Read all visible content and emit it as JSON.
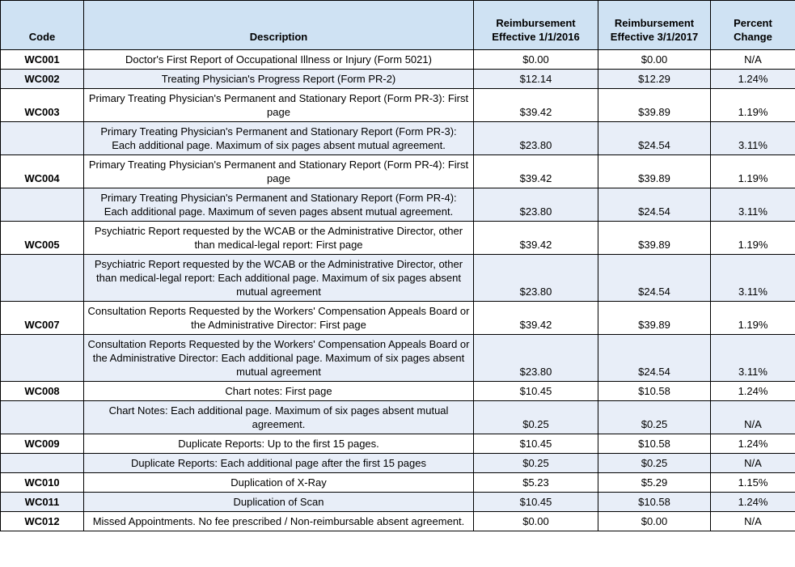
{
  "colors": {
    "header_bg": "#cfe2f3",
    "stripe_bg": "#e8eef8",
    "border": "#000000",
    "text": "#000000"
  },
  "table": {
    "columns": [
      {
        "key": "code",
        "label": "Code"
      },
      {
        "key": "description",
        "label": "Description"
      },
      {
        "key": "r2016",
        "label": "Reimbursement Effective 1/1/2016"
      },
      {
        "key": "r2017",
        "label": "Reimbursement Effective 3/1/2017"
      },
      {
        "key": "pct",
        "label": "Percent Change"
      }
    ],
    "rows": [
      {
        "code": "WC001",
        "description": "Doctor's First Report of Occupational Illness or Injury (Form 5021)",
        "r2016": "$0.00",
        "r2017": "$0.00",
        "pct": "N/A"
      },
      {
        "code": "WC002",
        "description": "Treating Physician's Progress Report (Form PR-2)",
        "r2016": "$12.14",
        "r2017": "$12.29",
        "pct": "1.24%"
      },
      {
        "code": "WC003",
        "description": "Primary Treating Physician's Permanent and Stationary Report (Form PR-3): First page",
        "r2016": "$39.42",
        "r2017": "$39.89",
        "pct": "1.19%"
      },
      {
        "code": "",
        "description": "Primary Treating Physician's Permanent and Stationary Report (Form PR-3): Each additional page. Maximum of six pages absent mutual agreement.",
        "r2016": "$23.80",
        "r2017": "$24.54",
        "pct": "3.11%"
      },
      {
        "code": "WC004",
        "description": "Primary Treating Physician's Permanent and Stationary Report (Form PR-4): First page",
        "r2016": "$39.42",
        "r2017": "$39.89",
        "pct": "1.19%"
      },
      {
        "code": "",
        "description": "Primary Treating Physician's Permanent and Stationary Report (Form PR-4): Each additional page. Maximum of seven pages absent mutual agreement.",
        "r2016": "$23.80",
        "r2017": "$24.54",
        "pct": "3.11%"
      },
      {
        "code": "WC005",
        "description": "Psychiatric Report requested by the WCAB or the Administrative Director, other than medical-legal report: First page",
        "r2016": "$39.42",
        "r2017": "$39.89",
        "pct": "1.19%"
      },
      {
        "code": "",
        "description": "Psychiatric Report requested by the WCAB or the Administrative Director, other than medical-legal report: Each additional page. Maximum of six pages absent mutual agreement",
        "r2016": "$23.80",
        "r2017": "$24.54",
        "pct": "3.11%"
      },
      {
        "code": "WC007",
        "description": "Consultation Reports Requested by the Workers' Compensation Appeals Board or the Administrative Director: First page",
        "r2016": "$39.42",
        "r2017": "$39.89",
        "pct": "1.19%"
      },
      {
        "code": "",
        "description": "Consultation Reports Requested by the Workers' Compensation Appeals Board or the Administrative Director: Each additional page. Maximum of six pages absent mutual agreement",
        "r2016": "$23.80",
        "r2017": "$24.54",
        "pct": "3.11%"
      },
      {
        "code": "WC008",
        "description": "Chart notes: First page",
        "r2016": "$10.45",
        "r2017": "$10.58",
        "pct": "1.24%"
      },
      {
        "code": "",
        "description": "Chart Notes: Each additional page. Maximum of six pages absent mutual agreement.",
        "r2016": "$0.25",
        "r2017": "$0.25",
        "pct": "N/A"
      },
      {
        "code": "WC009",
        "description": "Duplicate Reports: Up to the first 15 pages.",
        "r2016": "$10.45",
        "r2017": "$10.58",
        "pct": "1.24%"
      },
      {
        "code": "",
        "description": "Duplicate Reports: Each additional page after the first 15 pages",
        "r2016": "$0.25",
        "r2017": "$0.25",
        "pct": "N/A"
      },
      {
        "code": "WC010",
        "description": "Duplication of X-Ray",
        "r2016": "$5.23",
        "r2017": "$5.29",
        "pct": "1.15%"
      },
      {
        "code": "WC011",
        "description": "Duplication of Scan",
        "r2016": "$10.45",
        "r2017": "$10.58",
        "pct": "1.24%"
      },
      {
        "code": "WC012",
        "description": "Missed Appointments. No fee prescribed / Non-reimbursable absent agreement.",
        "r2016": "$0.00",
        "r2017": "$0.00",
        "pct": "N/A"
      }
    ]
  }
}
